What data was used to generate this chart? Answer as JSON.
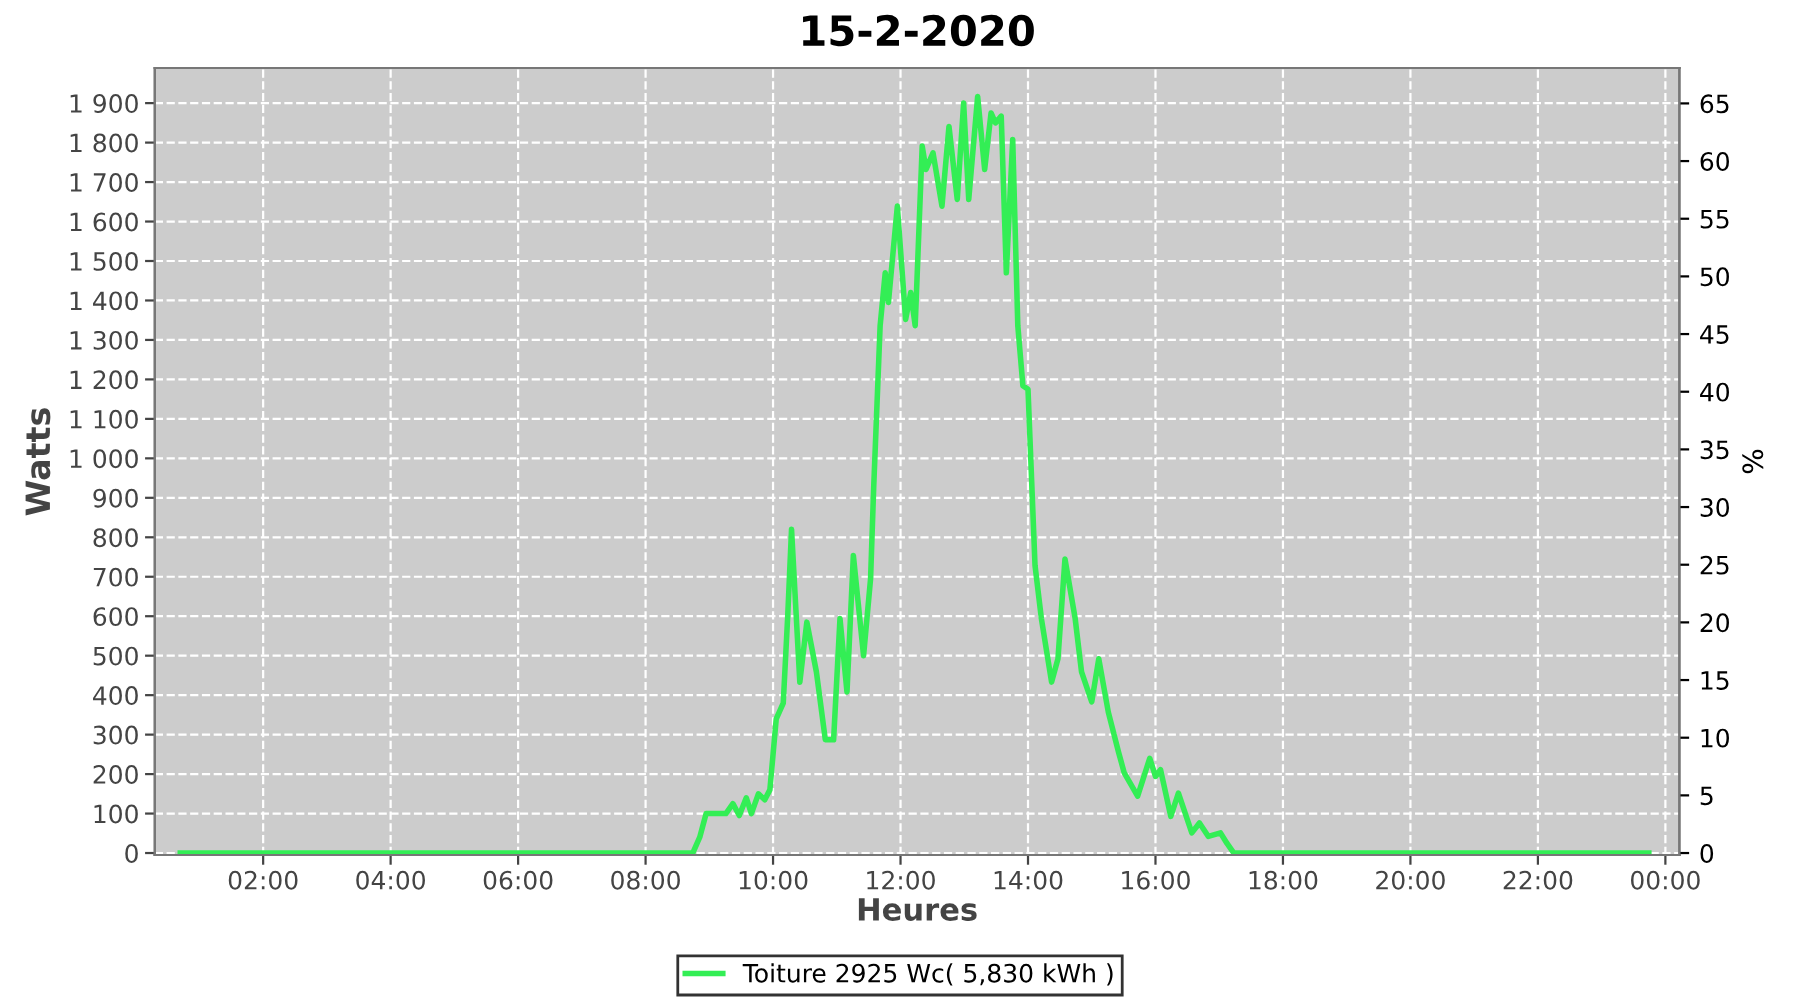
{
  "chart_data": {
    "type": "line",
    "title": "15-2-2020",
    "xlabel": "Heures",
    "ylabel": "Watts",
    "y2label": "%",
    "series": [
      {
        "name": "Toiture 2925 Wc( 5,830 kWh )",
        "color": "#33ee55",
        "x": [
          0.7,
          8.74,
          8.85,
          8.95,
          9.26,
          9.37,
          9.47,
          9.58,
          9.66,
          9.77,
          9.87,
          9.95,
          10.05,
          10.16,
          10.23,
          10.29,
          10.42,
          10.53,
          10.68,
          10.82,
          10.95,
          11.05,
          11.16,
          11.26,
          11.42,
          11.53,
          11.58,
          11.68,
          11.76,
          11.81,
          11.95,
          12.08,
          12.16,
          12.23,
          12.34,
          12.4,
          12.51,
          12.65,
          12.76,
          12.89,
          12.99,
          13.07,
          13.21,
          13.32,
          13.42,
          13.49,
          13.58,
          13.66,
          13.76,
          13.84,
          13.92,
          14.0,
          14.11,
          14.21,
          14.37,
          14.47,
          14.58,
          14.74,
          14.84,
          15.0,
          15.11,
          15.26,
          15.42,
          15.51,
          15.72,
          15.91,
          16.0,
          16.08,
          16.24,
          16.36,
          16.57,
          16.69,
          16.83,
          17.02,
          17.12,
          17.23,
          23.74
        ],
        "values": [
          0,
          0,
          40,
          100,
          100,
          125,
          95,
          140,
          100,
          150,
          135,
          160,
          340,
          380,
          600,
          820,
          433,
          585,
          459,
          287,
          287,
          594,
          408,
          754,
          500,
          695,
          931,
          1336,
          1470,
          1395,
          1639,
          1352,
          1420,
          1336,
          1791,
          1732,
          1774,
          1639,
          1841,
          1656,
          1900,
          1656,
          1917,
          1732,
          1875,
          1850,
          1867,
          1470,
          1808,
          1336,
          1184,
          1175,
          729,
          594,
          433,
          492,
          745,
          594,
          459,
          383,
          492,
          357,
          256,
          203,
          144,
          240,
          194,
          211,
          93,
          152,
          51,
          76,
          42,
          51,
          25,
          0,
          0
        ]
      }
    ],
    "xlim": [
      0.3,
      24.22
    ],
    "xticks": [
      {
        "value": 2,
        "label": "02:00"
      },
      {
        "value": 4,
        "label": "04:00"
      },
      {
        "value": 6,
        "label": "06:00"
      },
      {
        "value": 8,
        "label": "08:00"
      },
      {
        "value": 10,
        "label": "10:00"
      },
      {
        "value": 12,
        "label": "12:00"
      },
      {
        "value": 14,
        "label": "14:00"
      },
      {
        "value": 16,
        "label": "16:00"
      },
      {
        "value": 18,
        "label": "18:00"
      },
      {
        "value": 20,
        "label": "20:00"
      },
      {
        "value": 22,
        "label": "22:00"
      },
      {
        "value": 24,
        "label": "00:00"
      }
    ],
    "ylim": [
      -5,
      1989
    ],
    "yticks": [
      0,
      100,
      200,
      300,
      400,
      500,
      600,
      700,
      800,
      900,
      {
        "value": 1000,
        "label": "1 000"
      },
      {
        "value": 1100,
        "label": "1 100"
      },
      {
        "value": 1200,
        "label": "1 200"
      },
      {
        "value": 1300,
        "label": "1 300"
      },
      {
        "value": 1400,
        "label": "1 400"
      },
      {
        "value": 1500,
        "label": "1 500"
      },
      {
        "value": 1600,
        "label": "1 600"
      },
      {
        "value": 1700,
        "label": "1 700"
      },
      {
        "value": 1800,
        "label": "1 800"
      },
      {
        "value": 1900,
        "label": "1 900"
      }
    ],
    "y2lim": [
      -0.17,
      68.07
    ],
    "y2ticks": [
      0,
      5,
      10,
      15,
      20,
      25,
      30,
      35,
      40,
      45,
      50,
      55,
      60,
      65
    ],
    "grid": true,
    "legend": "bottom",
    "marker": "none",
    "line_style": "solid"
  }
}
